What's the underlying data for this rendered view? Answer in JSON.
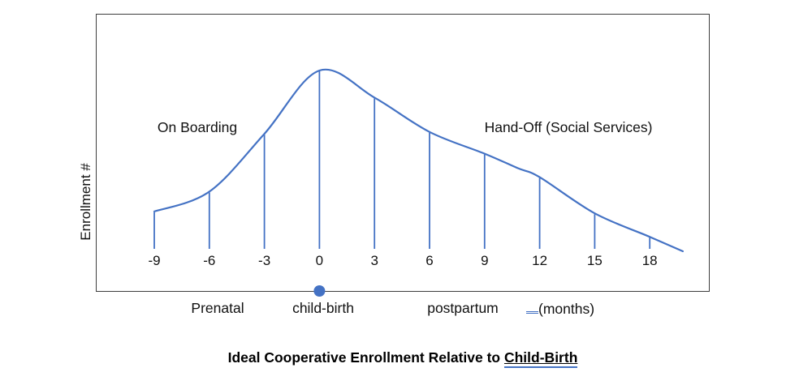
{
  "colors": {
    "accent_blue": "#4472C4",
    "frame_border": "#3d3d3d",
    "text": "#111111"
  },
  "y_axis_label": "Enrollment #",
  "annotations": {
    "left": "On Boarding",
    "right": "Hand-Off (Social Services)"
  },
  "below_axis": {
    "prenatal": "Prenatal",
    "childbirth": "child-birth",
    "postpartum": "postpartum",
    "months": "(months)"
  },
  "title": {
    "prefix": "Ideal Cooperative Enrollment Relative to ",
    "underlined": "Child-Birth"
  },
  "chart_data": {
    "type": "line",
    "x": [
      -9,
      -6,
      -3,
      0,
      3,
      6,
      9,
      10.8,
      12,
      15,
      18,
      19.8
    ],
    "values": [
      22,
      33,
      65,
      100,
      85,
      66,
      54,
      46,
      41,
      21,
      8,
      0
    ],
    "ticks": [
      -9,
      -6,
      -3,
      0,
      3,
      6,
      9,
      12,
      15,
      18
    ],
    "tick_labels": [
      "-9",
      "-6",
      "-3",
      "0",
      "3",
      "6",
      "9",
      "12",
      "15",
      "18"
    ],
    "xlabel": "(months)",
    "ylabel": "Enrollment #",
    "title": "Ideal Cooperative Enrollment Relative to Child-Birth",
    "ylim": [
      0,
      100
    ],
    "xlim": [
      -9,
      20
    ],
    "marker": {
      "x": 0,
      "label": "child-birth"
    },
    "droplines_at_ticks": true,
    "grid": false,
    "legend": "none",
    "peak": {
      "x": 0,
      "value": 100
    }
  }
}
